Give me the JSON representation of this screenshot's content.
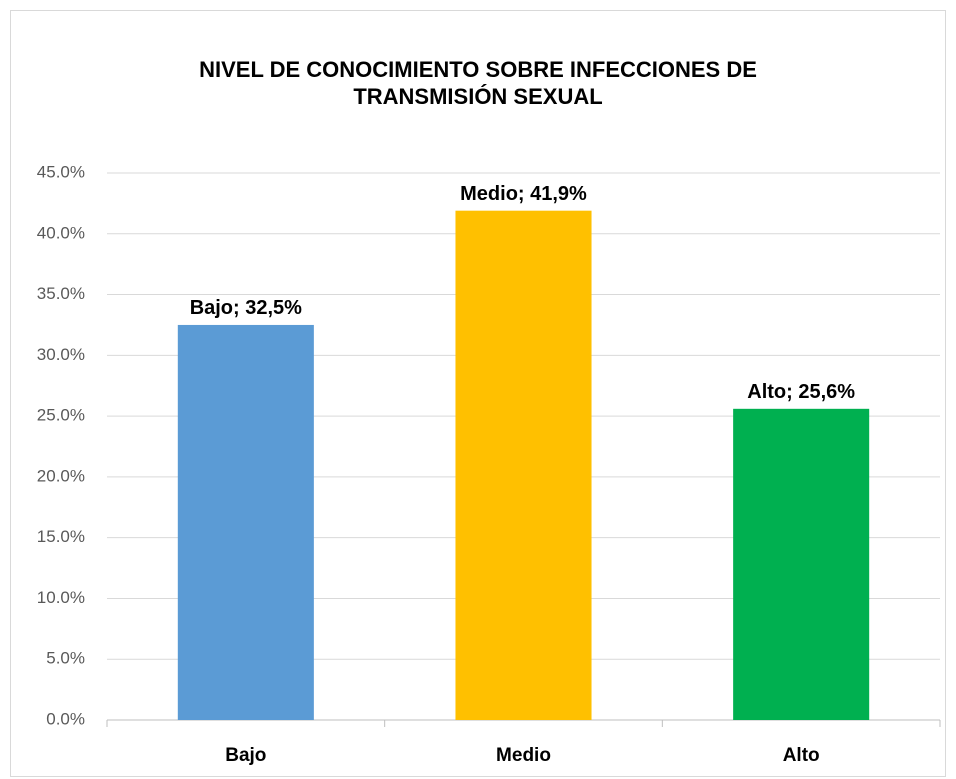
{
  "chart_data": {
    "type": "bar",
    "title": "NIVEL DE CONOCIMIENTO SOBRE INFECCIONES DE TRANSMISIÓN SEXUAL",
    "categories": [
      "Bajo",
      "Medio",
      "Alto"
    ],
    "values": [
      32.5,
      41.9,
      25.6
    ],
    "value_labels": [
      "Bajo; 32,5%",
      "Medio; 41,9%",
      "Alto; 25,6%"
    ],
    "colors": [
      "#5b9bd5",
      "#ffc000",
      "#00b050"
    ],
    "ylim": [
      0,
      45
    ],
    "yticks": [
      {
        "value": 0,
        "label": "0.0%"
      },
      {
        "value": 5,
        "label": "5.0%"
      },
      {
        "value": 10,
        "label": "10.0%"
      },
      {
        "value": 15,
        "label": "15.0%"
      },
      {
        "value": 20,
        "label": "20.0%"
      },
      {
        "value": 25,
        "label": "25.0%"
      },
      {
        "value": 30,
        "label": "30.0%"
      },
      {
        "value": 35,
        "label": "35.0%"
      },
      {
        "value": 40,
        "label": "40.0%"
      },
      {
        "value": 45,
        "label": "45.0%"
      }
    ],
    "grid": true
  }
}
